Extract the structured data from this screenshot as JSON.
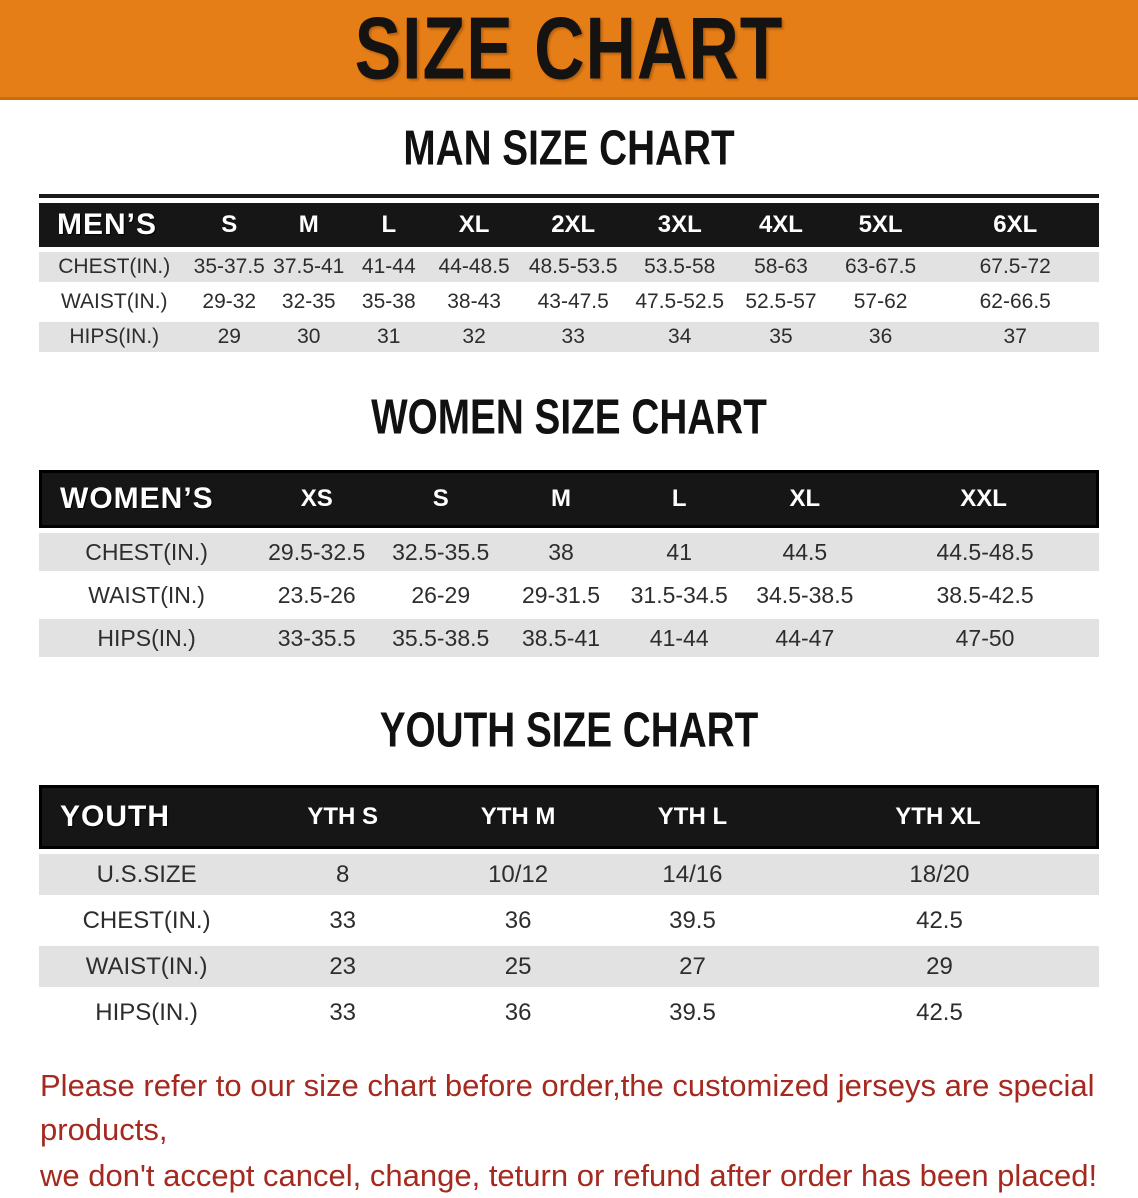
{
  "banner": {
    "title": "SIZE CHART"
  },
  "sections": [
    {
      "id": "men",
      "heading": "MAN SIZE CHART",
      "group_label": "MEN’S",
      "size_headers": [
        "S",
        "M",
        "L",
        "XL",
        "2XL",
        "3XL",
        "4XL",
        "5XL",
        "6XL"
      ],
      "rows": [
        {
          "label": "CHEST(IN.)",
          "values": [
            "35-37.5",
            "37.5-41",
            "41-44",
            "44-48.5",
            "48.5-53.5",
            "53.5-58",
            "58-63",
            "63-67.5",
            "67.5-72"
          ]
        },
        {
          "label": "WAIST(IN.)",
          "values": [
            "29-32",
            "32-35",
            "35-38",
            "38-43",
            "43-47.5",
            "47.5-52.5",
            "52.5-57",
            "57-62",
            "62-66.5"
          ]
        },
        {
          "label": "HIPS(IN.)",
          "values": [
            "29",
            "30",
            "31",
            "32",
            "33",
            "34",
            "35",
            "36",
            "37"
          ]
        }
      ]
    },
    {
      "id": "women",
      "heading": "WOMEN SIZE CHART",
      "group_label": "WOMEN’S",
      "size_headers": [
        "XS",
        "S",
        "M",
        "L",
        "XL",
        "XXL"
      ],
      "rows": [
        {
          "label": "CHEST(IN.)",
          "values": [
            "29.5-32.5",
            "32.5-35.5",
            "38",
            "41",
            "44.5",
            "44.5-48.5"
          ]
        },
        {
          "label": "WAIST(IN.)",
          "values": [
            "23.5-26",
            "26-29",
            "29-31.5",
            "31.5-34.5",
            "34.5-38.5",
            "38.5-42.5"
          ]
        },
        {
          "label": "HIPS(IN.)",
          "values": [
            "33-35.5",
            "35.5-38.5",
            "38.5-41",
            "41-44",
            "44-47",
            "47-50"
          ]
        }
      ]
    },
    {
      "id": "youth",
      "heading": "YOUTH SIZE CHART",
      "group_label": "YOUTH",
      "size_headers": [
        "YTH S",
        "YTH M",
        "YTH L",
        "YTH XL"
      ],
      "rows": [
        {
          "label": "U.S.SIZE",
          "values": [
            "8",
            "10/12",
            "14/16",
            "18/20"
          ]
        },
        {
          "label": "CHEST(IN.)",
          "values": [
            "33",
            "36",
            "39.5",
            "42.5"
          ]
        },
        {
          "label": "WAIST(IN.)",
          "values": [
            "23",
            "25",
            "27",
            "29"
          ]
        },
        {
          "label": "HIPS(IN.)",
          "values": [
            "33",
            "36",
            "39.5",
            "42.5"
          ]
        }
      ]
    }
  ],
  "footer_note": {
    "line1": "Please refer to our size chart before order,the customized jerseys are special products,",
    "line2": "we don't accept cancel, change, teturn or refund after order has been placed!"
  },
  "colors": {
    "banner_bg": "#E67E17",
    "banner_border": "#C96C0E",
    "header_bar_bg": "#161616",
    "row_alt_bg": "#E2E2E2",
    "note_text": "#A5291E"
  }
}
